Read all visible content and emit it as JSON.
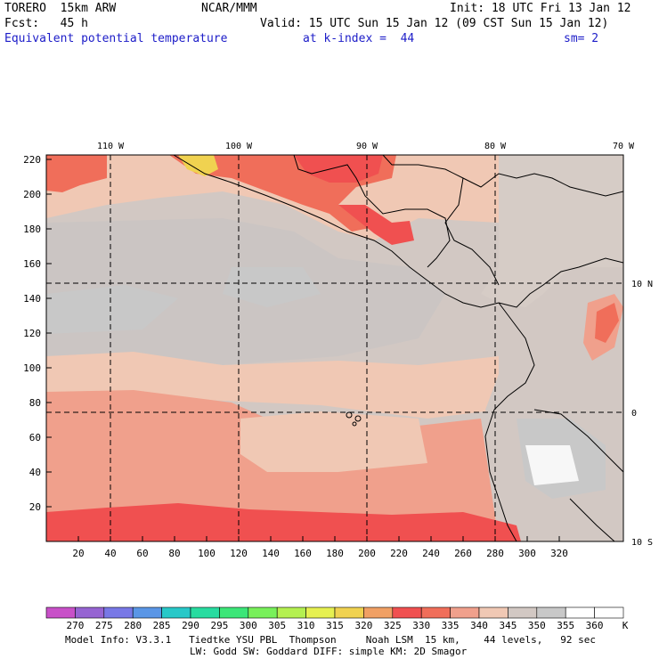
{
  "header": {
    "model": "TORERO  15km ARW",
    "org": "NCAR/MMM",
    "init": "Init: 18 UTC Fri 13 Jan 12",
    "fcst": "Fcst:   45 h",
    "valid": "Valid: 15 UTC Sun 15 Jan 12 (09 CST Sun 15 Jan 12)",
    "field": "Equivalent potential temperature",
    "level": "at k-index =  44",
    "smooth": "sm= 2"
  },
  "map": {
    "lon_labels": [
      "110 W",
      "100 W",
      "90 W",
      "80 W",
      "70 W"
    ],
    "lat_labels": [
      "10 N",
      "0",
      "10 S"
    ],
    "x_ticks": [
      "20",
      "40",
      "60",
      "80",
      "100",
      "120",
      "140",
      "160",
      "180",
      "200",
      "220",
      "240",
      "260",
      "280",
      "300",
      "320"
    ],
    "y_ticks": [
      "220",
      "200",
      "180",
      "160",
      "140",
      "120",
      "100",
      "80",
      "60",
      "40",
      "20"
    ]
  },
  "colorbar": {
    "labels": [
      "270",
      "275",
      "280",
      "285",
      "290",
      "295",
      "300",
      "305",
      "310",
      "315",
      "320",
      "325",
      "330",
      "335",
      "340",
      "345",
      "350",
      "355",
      "360"
    ],
    "unit": "K",
    "colors": [
      "#c850c8",
      "#9664d2",
      "#7878e6",
      "#5a96e6",
      "#28c8c8",
      "#28dca0",
      "#3ce678",
      "#78f05a",
      "#b4f050",
      "#e6f050",
      "#f0d250",
      "#f0a064",
      "#f05050",
      "#f06e5a",
      "#f0a08c",
      "#f0c8b4",
      "#d2c8c3",
      "#c8c8c8",
      "#ffffff"
    ]
  },
  "footer": {
    "line1": "Model Info: V3.3.1   Tiedtke YSU PBL  Thompson     Noah LSM  15 km,    44 levels,   92 sec",
    "line2": "LW: Godd SW: Goddard DIFF: simple KM: 2D Smagor"
  }
}
